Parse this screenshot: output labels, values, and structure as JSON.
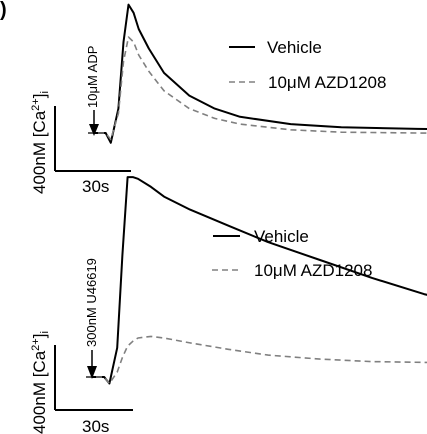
{
  "panel_label": ")",
  "chart_data": [
    {
      "type": "line",
      "title": "",
      "xlabel": "",
      "ylabel": "",
      "stimulus": "10μM ADP",
      "scale_bars": {
        "x": "30s",
        "y": "400nM [Ca2+]i"
      },
      "legend": {
        "placement": "top-right"
      },
      "x": [
        0,
        4,
        7,
        9,
        12,
        14,
        16,
        18,
        20,
        24,
        30,
        40,
        50,
        60,
        80,
        100,
        130,
        160,
        200,
        240,
        280,
        320
      ],
      "series": [
        {
          "name": "Vehicle",
          "style": "solid",
          "color": "#000000",
          "values": [
            0,
            0,
            0,
            -60,
            150,
            560,
            790,
            740,
            640,
            520,
            370,
            230,
            150,
            100,
            55,
            35,
            25,
            18,
            14,
            12,
            12,
            12
          ]
        },
        {
          "name": "10μM AZD1208",
          "style": "dashed",
          "color": "#808080",
          "values": [
            0,
            0,
            0,
            -40,
            120,
            440,
            590,
            560,
            480,
            380,
            260,
            150,
            90,
            55,
            20,
            5,
            0,
            -3,
            -3,
            -2,
            -2,
            -2
          ]
        }
      ]
    },
    {
      "type": "line",
      "title": "",
      "xlabel": "",
      "ylabel": "",
      "stimulus": "300nM U46619",
      "scale_bars": {
        "x": "30s",
        "y": "400nM [Ca2+]i"
      },
      "legend": {
        "placement": "top-right"
      },
      "x": [
        0,
        4,
        7,
        9,
        12,
        14,
        16,
        18,
        20,
        25,
        30,
        40,
        55,
        70,
        90,
        110,
        130,
        160,
        190,
        220,
        250,
        280,
        310,
        340
      ],
      "series": [
        {
          "name": "Vehicle",
          "style": "solid",
          "color": "#000000",
          "values": [
            0,
            0,
            0,
            -40,
            180,
            750,
            1230,
            1230,
            1220,
            1170,
            1110,
            1030,
            930,
            830,
            720,
            610,
            510,
            400,
            320,
            260,
            210,
            185,
            170,
            160
          ]
        },
        {
          "name": "10μM AZD1208",
          "style": "dashed",
          "color": "#808080",
          "values": [
            0,
            0,
            0,
            -40,
            30,
            120,
            190,
            220,
            240,
            250,
            240,
            210,
            170,
            135,
            110,
            95,
            90,
            90,
            90,
            85,
            80,
            75,
            72,
            70
          ]
        }
      ]
    }
  ]
}
